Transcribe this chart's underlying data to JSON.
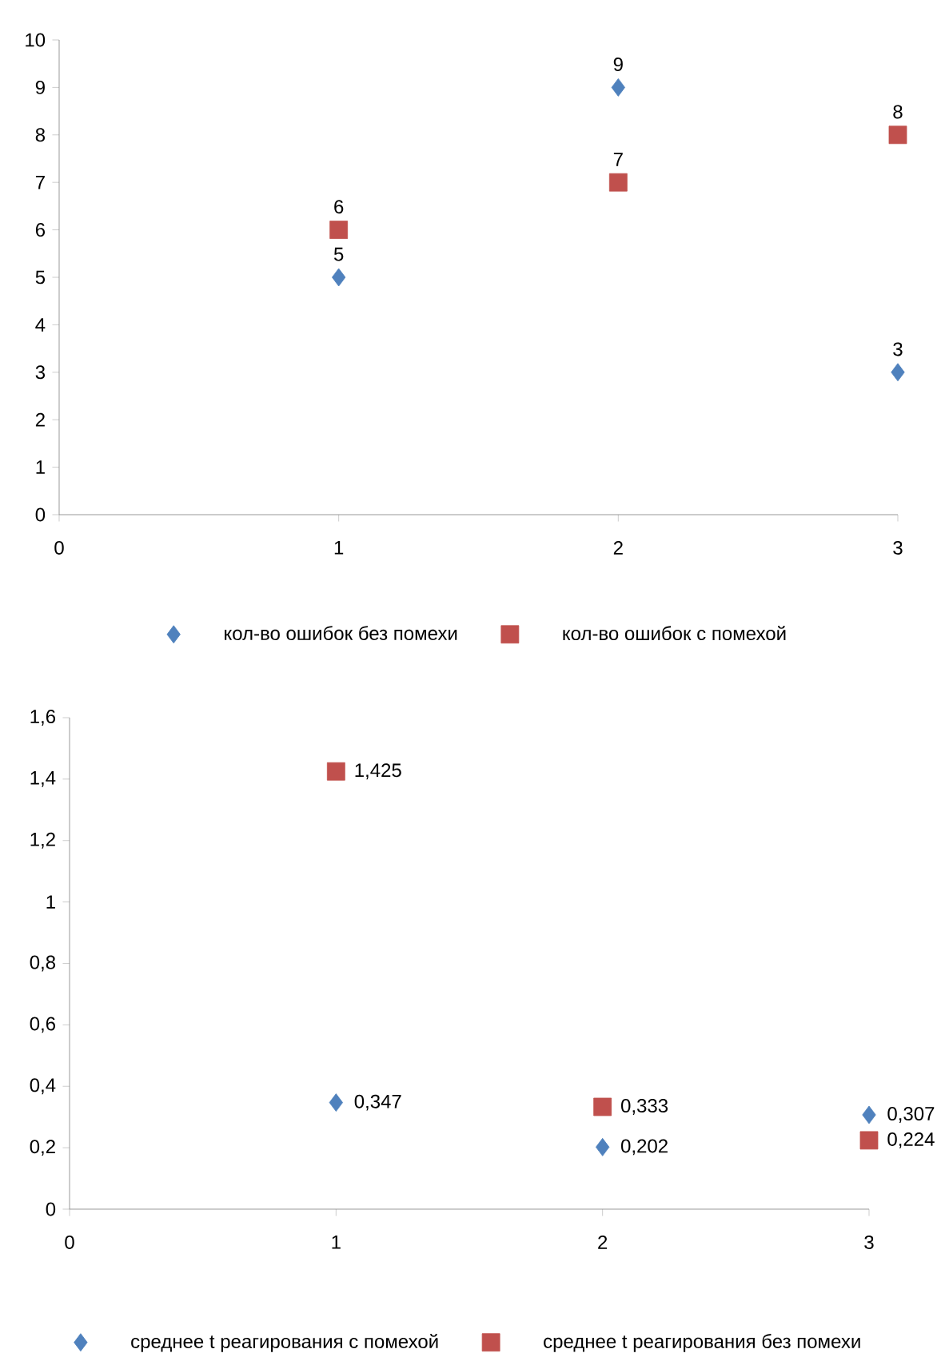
{
  "chart_data": [
    {
      "type": "scatter",
      "x": [
        1,
        2,
        3
      ],
      "xlim": [
        0,
        3
      ],
      "xticks": [
        0,
        1,
        2,
        3
      ],
      "ylim": [
        0,
        10
      ],
      "yticks": [
        0,
        1,
        2,
        3,
        4,
        5,
        6,
        7,
        8,
        9,
        10
      ],
      "grid": false,
      "legend": "bottom",
      "data_labels": true,
      "series": [
        {
          "name": "кол-во ошибок без помехи",
          "color": "#4f81bd",
          "marker": "diamond",
          "values": [
            5,
            9,
            3
          ]
        },
        {
          "name": "кол-во ошибок с помехой",
          "color": "#c0504d",
          "marker": "square",
          "values": [
            6,
            7,
            8
          ]
        }
      ]
    },
    {
      "type": "scatter",
      "x": [
        1,
        2,
        3
      ],
      "xlim": [
        0,
        3
      ],
      "xticks": [
        0,
        1,
        2,
        3
      ],
      "ylim": [
        0,
        1.6
      ],
      "yticks": [
        0,
        {
          "value": 0.2,
          "label": "0,2"
        },
        {
          "value": 0.4,
          "label": "0,4"
        },
        {
          "value": 0.6,
          "label": "0,6"
        },
        {
          "value": 0.8,
          "label": "0,8"
        },
        1,
        {
          "value": 1.2,
          "label": "1,2"
        },
        {
          "value": 1.4,
          "label": "1,4"
        },
        {
          "value": 1.6,
          "label": "1,6"
        }
      ],
      "grid": false,
      "legend": "bottom",
      "series": [
        {
          "name": "среднее t реагирования с помехой",
          "color": "#4f81bd",
          "marker": "diamond",
          "values": [
            0.347,
            0.202,
            0.307
          ],
          "value_labels": [
            "0,347",
            "0,202",
            "0,307"
          ]
        },
        {
          "name": "среднее t реагирования без помехи",
          "color": "#c0504d",
          "marker": "square",
          "values": [
            1.425,
            0.333,
            0.224
          ],
          "value_labels": [
            "1,425",
            "0,333",
            "0,224"
          ]
        }
      ]
    }
  ]
}
